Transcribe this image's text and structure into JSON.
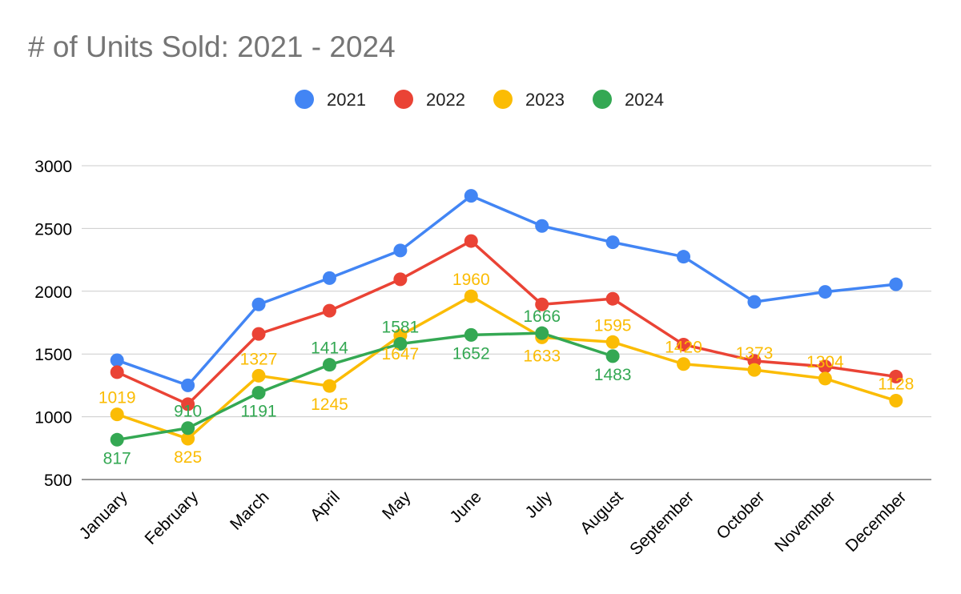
{
  "chart_data": {
    "type": "line",
    "title": "# of Units Sold: 2021 - 2024",
    "xlabel": "",
    "ylabel": "",
    "categories": [
      "January",
      "February",
      "March",
      "April",
      "May",
      "June",
      "July",
      "August",
      "September",
      "October",
      "November",
      "December"
    ],
    "ylim": [
      500,
      3000
    ],
    "yticks": [
      500,
      1000,
      1500,
      2000,
      2500,
      3000
    ],
    "grid": true,
    "legend_position": "top",
    "series": [
      {
        "name": "2021",
        "color": "#4285F4",
        "values": [
          1450,
          1250,
          1895,
          2105,
          2325,
          2760,
          2520,
          2390,
          2275,
          1915,
          1995,
          2055
        ],
        "show_labels": false
      },
      {
        "name": "2022",
        "color": "#EA4335",
        "values": [
          1355,
          1100,
          1660,
          1845,
          2095,
          2400,
          1895,
          1940,
          1575,
          1445,
          1400,
          1320
        ],
        "show_labels": false
      },
      {
        "name": "2023",
        "color": "#FBBC04",
        "values": [
          1019,
          825,
          1327,
          1245,
          1647,
          1960,
          1633,
          1595,
          1420,
          1373,
          1304,
          1128
        ],
        "show_labels": true,
        "label_pos": [
          "above",
          "below",
          "above",
          "below",
          "below",
          "above",
          "below",
          "above",
          "above",
          "above",
          "above",
          "above"
        ]
      },
      {
        "name": "2024",
        "color": "#34A853",
        "values": [
          817,
          910,
          1191,
          1414,
          1581,
          1652,
          1666,
          1483,
          null,
          null,
          null,
          null
        ],
        "show_labels": true,
        "label_pos": [
          "below",
          "above",
          "below",
          "above",
          "above",
          "below",
          "above",
          "below",
          null,
          null,
          null,
          null
        ]
      }
    ]
  }
}
